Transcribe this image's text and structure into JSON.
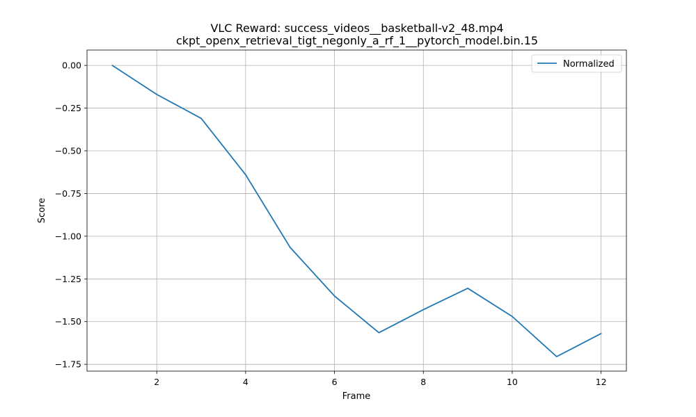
{
  "chart_data": {
    "type": "line",
    "title_line1": "VLC Reward: success_videos__basketball-v2_48.mp4",
    "title_line2": "ckpt_openx_retrieval_tigt_negonly_a_rf_1__pytorch_model.bin.15",
    "xlabel": "Frame",
    "ylabel": "Score",
    "xlim": [
      0.43,
      12.57
    ],
    "ylim": [
      -1.79,
      0.09
    ],
    "xticks": [
      2,
      4,
      6,
      8,
      10,
      12
    ],
    "xtick_labels": [
      "2",
      "4",
      "6",
      "8",
      "10",
      "12"
    ],
    "yticks": [
      0.0,
      -0.25,
      -0.5,
      -0.75,
      -1.0,
      -1.25,
      -1.5,
      -1.75
    ],
    "ytick_labels": [
      "0.00",
      "−0.25",
      "−0.50",
      "−0.75",
      "−1.00",
      "−1.25",
      "−1.50",
      "−1.75"
    ],
    "grid": true,
    "legend_position": "top-right",
    "series": [
      {
        "name": "Normalized",
        "color": "#1f77b4",
        "x": [
          1,
          2,
          3,
          4,
          5,
          6,
          7,
          8,
          9,
          10,
          11,
          12
        ],
        "y": [
          0.0,
          -0.17,
          -0.31,
          -0.64,
          -1.065,
          -1.35,
          -1.565,
          -1.43,
          -1.305,
          -1.47,
          -1.705,
          -1.57
        ]
      }
    ]
  }
}
